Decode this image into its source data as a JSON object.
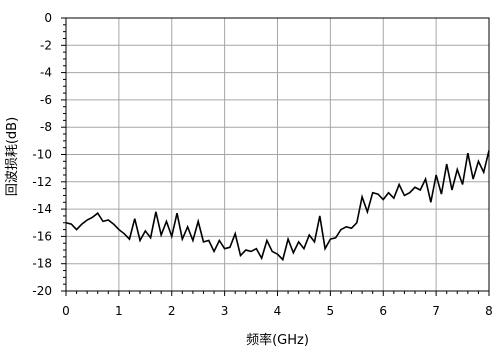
{
  "chart_data": {
    "type": "line",
    "title": "",
    "xlabel": "频率(GHz)",
    "ylabel": "回波损耗(dB)",
    "xlim": [
      0,
      8
    ],
    "ylim": [
      -20,
      0
    ],
    "xticks": [
      0,
      1,
      2,
      3,
      4,
      5,
      6,
      7,
      8
    ],
    "yticks": [
      0,
      -2,
      -4,
      -6,
      -8,
      -10,
      -12,
      -14,
      -16,
      -18,
      -20
    ],
    "grid": true,
    "legend": "none",
    "colors": {
      "line": "#000000",
      "grid": "#a6a6a6",
      "frame": "#000000"
    },
    "series": [
      {
        "x": [
          0.0,
          0.1,
          0.2,
          0.3,
          0.4,
          0.5,
          0.6,
          0.7,
          0.8,
          0.9,
          1.0,
          1.1,
          1.2,
          1.3,
          1.4,
          1.5,
          1.6,
          1.7,
          1.8,
          1.9,
          2.0,
          2.1,
          2.2,
          2.3,
          2.4,
          2.5,
          2.6,
          2.7,
          2.8,
          2.9,
          3.0,
          3.1,
          3.2,
          3.3,
          3.4,
          3.5,
          3.6,
          3.7,
          3.8,
          3.9,
          4.0,
          4.1,
          4.2,
          4.3,
          4.4,
          4.5,
          4.6,
          4.7,
          4.8,
          4.9,
          5.0,
          5.1,
          5.2,
          5.3,
          5.4,
          5.5,
          5.6,
          5.7,
          5.8,
          5.9,
          6.0,
          6.1,
          6.2,
          6.3,
          6.4,
          6.5,
          6.6,
          6.7,
          6.8,
          6.9,
          7.0,
          7.1,
          7.2,
          7.3,
          7.4,
          7.5,
          7.6,
          7.7,
          7.8,
          7.9,
          8.0
        ],
        "values": [
          -15.0,
          -15.1,
          -15.5,
          -15.1,
          -14.8,
          -14.6,
          -14.3,
          -14.9,
          -14.8,
          -15.1,
          -15.5,
          -15.8,
          -16.2,
          -14.7,
          -16.3,
          -15.6,
          -16.1,
          -14.2,
          -15.9,
          -14.9,
          -16.0,
          -14.3,
          -16.2,
          -15.3,
          -16.3,
          -14.9,
          -16.4,
          -16.3,
          -17.1,
          -16.3,
          -16.9,
          -16.8,
          -15.8,
          -17.4,
          -17.0,
          -17.1,
          -16.9,
          -17.6,
          -16.3,
          -17.1,
          -17.3,
          -17.7,
          -16.2,
          -17.2,
          -16.4,
          -16.9,
          -15.9,
          -16.4,
          -14.5,
          -16.9,
          -16.2,
          -16.1,
          -15.5,
          -15.3,
          -15.4,
          -15.0,
          -13.1,
          -14.2,
          -12.8,
          -12.9,
          -13.3,
          -12.8,
          -13.2,
          -12.2,
          -13.0,
          -12.8,
          -12.4,
          -12.6,
          -11.8,
          -13.5,
          -11.5,
          -12.9,
          -10.7,
          -12.6,
          -11.1,
          -12.2,
          -9.9,
          -11.8,
          -10.5,
          -11.3,
          -9.7
        ]
      }
    ]
  }
}
